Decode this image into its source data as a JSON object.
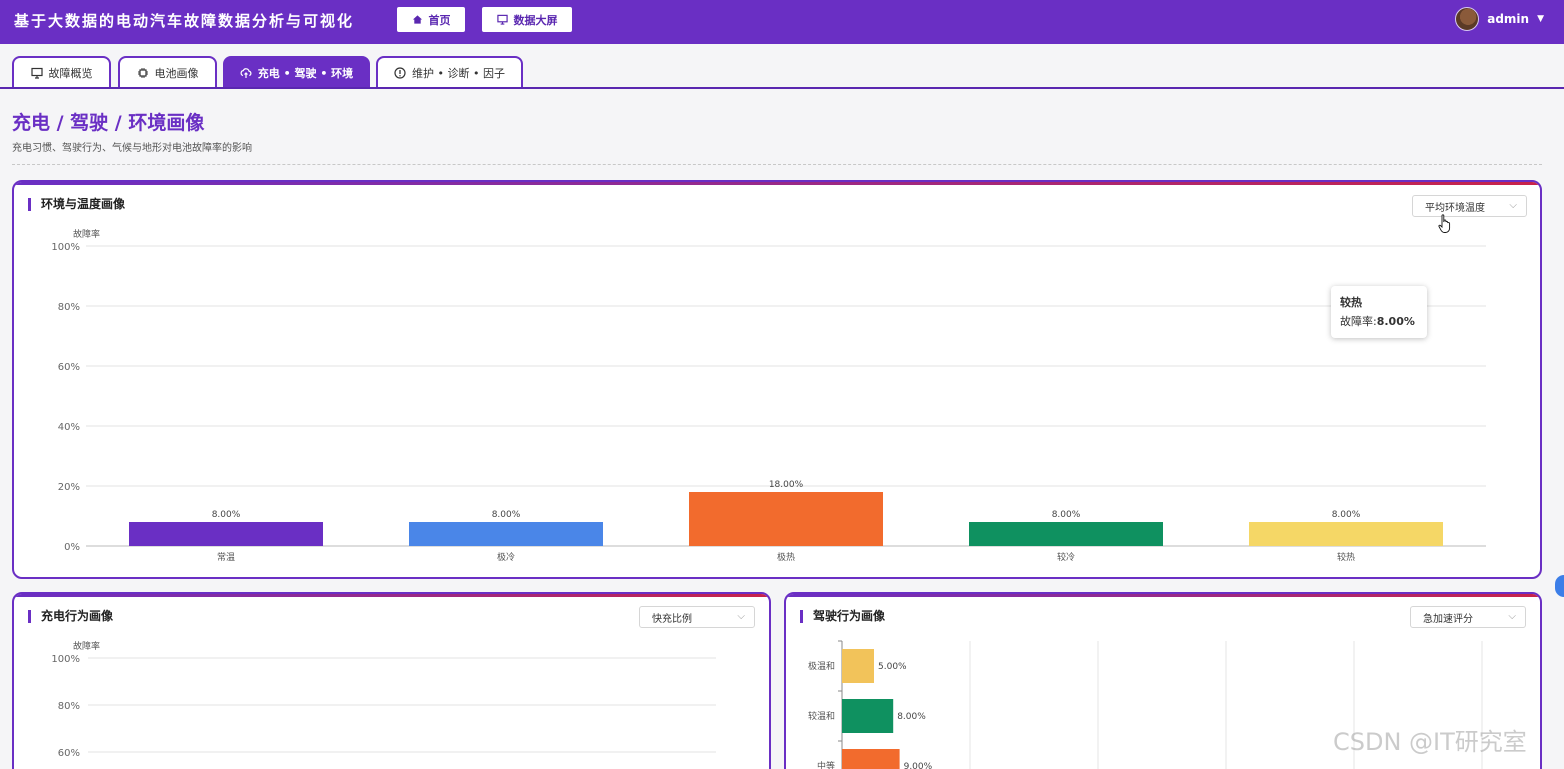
{
  "header": {
    "app_title": "基于大数据的电动汽车故障数据分析与可视化",
    "home_label": "首页",
    "dashboard_label": "数据大屏",
    "user_name": "admin",
    "brand_color": "#6a2fc4"
  },
  "tabs": [
    {
      "label": "故障概览",
      "icon": "monitor-icon"
    },
    {
      "label": "电池画像",
      "icon": "chip-icon"
    },
    {
      "label": "充电 • 驾驶 • 环境",
      "icon": "cloud-upload-icon"
    },
    {
      "label": "维护 • 诊断 • 因子",
      "icon": "alert-circle-icon"
    }
  ],
  "page": {
    "title": "充电 / 驾驶 / 环境画像",
    "subtitle": "充电习惯、驾驶行为、气候与地形对电池故障率的影响"
  },
  "environment_card": {
    "title": "环境与温度画像",
    "select_value": "平均环境温度",
    "tooltip": {
      "title": "较热",
      "label": "故障率:",
      "value": "8.00%"
    }
  },
  "charging_card": {
    "title": "充电行为画像",
    "select_value": "快充比例"
  },
  "driving_card": {
    "title": "驾驶行为画像",
    "select_value": "急加速评分"
  },
  "watermark": "CSDN @IT研究室",
  "chart_data": [
    {
      "type": "bar",
      "ylabel": "故障率",
      "ylim": [
        0,
        100
      ],
      "yticks": [
        "100%",
        "80%",
        "60%",
        "40%",
        "20%",
        "0%"
      ],
      "categories": [
        "常温",
        "极冷",
        "极热",
        "较冷",
        "较热"
      ],
      "values": [
        8,
        8,
        18,
        8,
        8
      ],
      "value_labels": [
        "8.00%",
        "8.00%",
        "18.00%",
        "8.00%",
        "8.00%"
      ],
      "colors": [
        "#6a2fc4",
        "#4a86e8",
        "#f26b2d",
        "#0f9160",
        "#f5d766"
      ]
    },
    {
      "type": "bar",
      "ylabel": "故障率",
      "ylim": [
        0,
        100
      ],
      "yticks_visible": [
        "100%",
        "80%",
        "60%"
      ]
    },
    {
      "type": "bar",
      "orientation": "horizontal",
      "categories_visible": [
        "极温和",
        "较温和",
        "中等"
      ],
      "values_visible": [
        5,
        8,
        9
      ],
      "value_labels": [
        "5.00%",
        "8.00%",
        "9.00%"
      ],
      "colors": [
        "#f2c35a",
        "#0f9160",
        "#f26b2d"
      ]
    }
  ]
}
